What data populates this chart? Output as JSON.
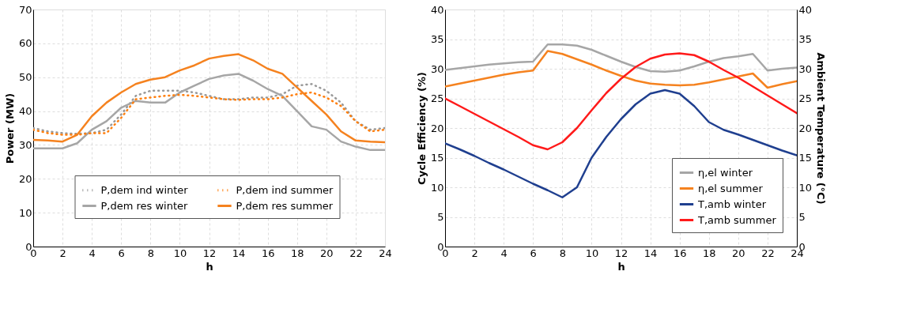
{
  "chart_data": [
    {
      "type": "line",
      "xlabel": "h",
      "ylabel": "Power (MW)",
      "x": [
        0,
        1,
        2,
        3,
        4,
        5,
        6,
        7,
        8,
        9,
        10,
        11,
        12,
        13,
        14,
        15,
        16,
        17,
        18,
        19,
        20,
        21,
        22,
        23,
        24
      ],
      "xlim": [
        0,
        24
      ],
      "xticks": [
        0,
        2,
        4,
        6,
        8,
        10,
        12,
        14,
        16,
        18,
        20,
        22,
        24
      ],
      "ylim": [
        0,
        70
      ],
      "yticks": [
        0,
        10,
        20,
        30,
        40,
        50,
        60,
        70
      ],
      "grid": true,
      "legend": "bottom",
      "series": [
        {
          "name": "P,dem ind winter",
          "color": "#999999",
          "line_style": "dotted",
          "values": [
            35,
            34,
            33.5,
            33.3,
            33.5,
            34.5,
            39,
            44.5,
            46,
            46,
            46,
            45.5,
            44.5,
            43.5,
            43.5,
            44,
            44,
            45,
            47.5,
            48,
            46,
            42.5,
            37,
            34.5,
            35
          ]
        },
        {
          "name": "P,dem res winter",
          "color": "#a6a6a6",
          "line_style": "solid",
          "values": [
            29,
            29,
            29,
            30.5,
            34.5,
            37,
            41,
            43,
            42.5,
            42.5,
            45.5,
            47.5,
            49.5,
            50.5,
            51,
            49,
            46.5,
            44.5,
            40,
            35.5,
            34.5,
            31,
            29.5,
            28.5,
            28.5
          ]
        },
        {
          "name": "P,dem ind summer",
          "color": "#ff7f0e",
          "line_style": "dotted",
          "values": [
            34.5,
            33.5,
            33,
            33,
            33.5,
            33.5,
            38,
            43.5,
            44,
            44.5,
            44.8,
            44.5,
            44,
            43.5,
            43.3,
            43.5,
            43.5,
            44,
            45,
            45.5,
            44,
            41.5,
            37,
            34,
            34.5
          ]
        },
        {
          "name": "P,dem res summer",
          "color": "#f5821f",
          "line_style": "solid",
          "values": [
            31.5,
            31.3,
            31,
            33,
            38.5,
            42.5,
            45.5,
            48,
            49.3,
            50,
            52,
            53.5,
            55.5,
            56.3,
            56.8,
            55,
            52.5,
            51,
            47,
            43,
            39,
            34,
            31.3,
            31,
            30.8
          ]
        }
      ]
    },
    {
      "type": "line",
      "xlabel": "h",
      "ylabel": "Cycle Efficiency (%)",
      "y2label": "Ambient Temperature (°C)",
      "x": [
        0,
        1,
        2,
        3,
        4,
        5,
        6,
        7,
        8,
        9,
        10,
        11,
        12,
        13,
        14,
        15,
        16,
        17,
        18,
        19,
        20,
        21,
        22,
        23,
        24
      ],
      "xlim": [
        0,
        24
      ],
      "xticks": [
        0,
        2,
        4,
        6,
        8,
        10,
        12,
        14,
        16,
        18,
        20,
        22,
        24
      ],
      "ylim": [
        0,
        40
      ],
      "yticks": [
        0,
        5,
        10,
        15,
        20,
        25,
        30,
        35,
        40
      ],
      "y2lim": [
        0,
        40
      ],
      "y2ticks": [
        0,
        5,
        10,
        15,
        20,
        25,
        30,
        35,
        40
      ],
      "grid": true,
      "legend": "bottom right",
      "series": [
        {
          "name": "η,el winter",
          "color": "#a6a6a6",
          "line_style": "solid",
          "values": [
            29.8,
            30.1,
            30.4,
            30.7,
            30.9,
            31.1,
            31.2,
            34.1,
            34.1,
            33.9,
            33.2,
            32.2,
            31.2,
            30.3,
            29.6,
            29.5,
            29.7,
            30.4,
            31.2,
            31.8,
            32.1,
            32.5,
            29.7,
            30,
            30.2
          ]
        },
        {
          "name": "η,el summer",
          "color": "#f5821f",
          "line_style": "solid",
          "values": [
            27,
            27.5,
            28,
            28.5,
            29,
            29.4,
            29.7,
            33,
            32.5,
            31.6,
            30.7,
            29.7,
            28.8,
            28,
            27.5,
            27.3,
            27.2,
            27.3,
            27.7,
            28.2,
            28.7,
            29.2,
            26.8,
            27.4,
            27.9
          ]
        },
        {
          "name": "T,amb winter",
          "color": "#1f3f8f",
          "line_style": "solid",
          "axis": "y2",
          "values": [
            17.4,
            16.4,
            15.3,
            14.1,
            13,
            11.8,
            10.6,
            9.5,
            8.3,
            10,
            15,
            18.5,
            21.5,
            24,
            25.8,
            26.4,
            25.8,
            23.7,
            21,
            19.7,
            18.9,
            18,
            17.1,
            16.2,
            15.4
          ]
        },
        {
          "name": "T,amb summer",
          "color": "#ff1a1a",
          "line_style": "solid",
          "axis": "y2",
          "values": [
            25,
            23.7,
            22.4,
            21.1,
            19.8,
            18.5,
            17.1,
            16.4,
            17.6,
            20,
            23,
            25.9,
            28.3,
            30.3,
            31.7,
            32.4,
            32.6,
            32.3,
            31.2,
            29.8,
            28.5,
            27,
            25.5,
            24,
            22.5
          ]
        }
      ]
    }
  ]
}
